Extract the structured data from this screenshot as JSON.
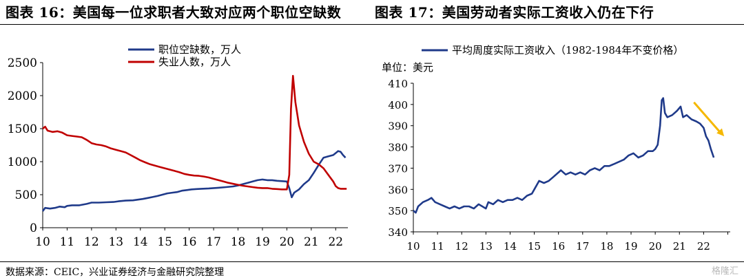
{
  "header": {
    "left_title": "图表 16：美国每一位求职者大致对应两个职位空缺数",
    "right_title": "图表 17：美国劳动者实际工资收入仍在下行"
  },
  "footer": {
    "source": "数据来源：CEIC，兴业证券经济与金融研究院整理",
    "watermark": "格隆汇"
  },
  "colors": {
    "navy": "#1f3a8a",
    "red": "#c00000",
    "arrow": "#f5b800"
  },
  "chart_data": [
    {
      "type": "line",
      "title": "",
      "xlabel": "",
      "ylabel": "",
      "ylim": [
        0,
        2500
      ],
      "xlim": [
        10,
        22.5
      ],
      "x_ticks": [
        "10",
        "11",
        "12",
        "13",
        "14",
        "15",
        "16",
        "17",
        "18",
        "19",
        "20",
        "21",
        "22"
      ],
      "y_ticks": [
        "0",
        "500",
        "1000",
        "1500",
        "2000",
        "2500"
      ],
      "grid": false,
      "legend_position": "top",
      "series": [
        {
          "name": "职位空缺数，万人",
          "color": "#1f3a8a",
          "points": [
            [
              10.0,
              250
            ],
            [
              10.1,
              300
            ],
            [
              10.3,
              290
            ],
            [
              10.5,
              300
            ],
            [
              10.7,
              320
            ],
            [
              10.9,
              310
            ],
            [
              11.0,
              330
            ],
            [
              11.2,
              340
            ],
            [
              11.5,
              340
            ],
            [
              11.8,
              360
            ],
            [
              12.0,
              380
            ],
            [
              12.3,
              380
            ],
            [
              12.6,
              385
            ],
            [
              12.9,
              390
            ],
            [
              13.1,
              400
            ],
            [
              13.4,
              410
            ],
            [
              13.7,
              415
            ],
            [
              13.9,
              425
            ],
            [
              14.1,
              435
            ],
            [
              14.3,
              450
            ],
            [
              14.5,
              465
            ],
            [
              14.7,
              480
            ],
            [
              14.9,
              500
            ],
            [
              15.1,
              520
            ],
            [
              15.3,
              530
            ],
            [
              15.5,
              540
            ],
            [
              15.7,
              560
            ],
            [
              15.9,
              570
            ],
            [
              16.1,
              580
            ],
            [
              16.3,
              585
            ],
            [
              16.5,
              590
            ],
            [
              16.8,
              595
            ],
            [
              17.0,
              600
            ],
            [
              17.2,
              605
            ],
            [
              17.5,
              615
            ],
            [
              17.8,
              625
            ],
            [
              18.0,
              640
            ],
            [
              18.2,
              660
            ],
            [
              18.4,
              680
            ],
            [
              18.6,
              700
            ],
            [
              18.8,
              720
            ],
            [
              19.0,
              730
            ],
            [
              19.2,
              720
            ],
            [
              19.4,
              720
            ],
            [
              19.6,
              710
            ],
            [
              19.8,
              705
            ],
            [
              20.0,
              700
            ],
            [
              20.1,
              600
            ],
            [
              20.2,
              460
            ],
            [
              20.3,
              530
            ],
            [
              20.5,
              580
            ],
            [
              20.7,
              660
            ],
            [
              20.9,
              720
            ],
            [
              21.1,
              830
            ],
            [
              21.3,
              950
            ],
            [
              21.5,
              1060
            ],
            [
              21.7,
              1080
            ],
            [
              21.9,
              1100
            ],
            [
              22.0,
              1130
            ],
            [
              22.1,
              1160
            ],
            [
              22.2,
              1150
            ],
            [
              22.3,
              1100
            ],
            [
              22.4,
              1060
            ]
          ]
        },
        {
          "name": "失业人数，万人",
          "color": "#c00000",
          "points": [
            [
              10.0,
              1500
            ],
            [
              10.1,
              1530
            ],
            [
              10.2,
              1470
            ],
            [
              10.4,
              1450
            ],
            [
              10.6,
              1460
            ],
            [
              10.8,
              1440
            ],
            [
              11.0,
              1400
            ],
            [
              11.2,
              1390
            ],
            [
              11.4,
              1380
            ],
            [
              11.6,
              1370
            ],
            [
              11.8,
              1330
            ],
            [
              12.0,
              1280
            ],
            [
              12.2,
              1260
            ],
            [
              12.4,
              1250
            ],
            [
              12.6,
              1230
            ],
            [
              12.8,
              1200
            ],
            [
              13.0,
              1180
            ],
            [
              13.2,
              1160
            ],
            [
              13.4,
              1140
            ],
            [
              13.6,
              1100
            ],
            [
              13.8,
              1060
            ],
            [
              14.0,
              1020
            ],
            [
              14.2,
              990
            ],
            [
              14.4,
              960
            ],
            [
              14.6,
              940
            ],
            [
              14.8,
              920
            ],
            [
              15.0,
              900
            ],
            [
              15.2,
              880
            ],
            [
              15.4,
              860
            ],
            [
              15.6,
              840
            ],
            [
              15.8,
              815
            ],
            [
              16.0,
              800
            ],
            [
              16.2,
              790
            ],
            [
              16.4,
              785
            ],
            [
              16.6,
              775
            ],
            [
              16.8,
              760
            ],
            [
              17.0,
              740
            ],
            [
              17.2,
              720
            ],
            [
              17.4,
              700
            ],
            [
              17.6,
              680
            ],
            [
              17.8,
              665
            ],
            [
              18.0,
              650
            ],
            [
              18.2,
              635
            ],
            [
              18.4,
              625
            ],
            [
              18.6,
              615
            ],
            [
              18.8,
              605
            ],
            [
              19.0,
              600
            ],
            [
              19.2,
              600
            ],
            [
              19.4,
              590
            ],
            [
              19.6,
              585
            ],
            [
              19.8,
              580
            ],
            [
              20.0,
              580
            ],
            [
              20.1,
              800
            ],
            [
              20.17,
              1800
            ],
            [
              20.25,
              2300
            ],
            [
              20.35,
              1900
            ],
            [
              20.5,
              1550
            ],
            [
              20.7,
              1300
            ],
            [
              20.9,
              1120
            ],
            [
              21.1,
              1000
            ],
            [
              21.3,
              960
            ],
            [
              21.5,
              900
            ],
            [
              21.7,
              800
            ],
            [
              21.9,
              700
            ],
            [
              22.0,
              630
            ],
            [
              22.1,
              600
            ],
            [
              22.2,
              590
            ],
            [
              22.3,
              590
            ],
            [
              22.45,
              590
            ]
          ]
        }
      ]
    },
    {
      "type": "line",
      "title": "",
      "xlabel": "",
      "ylabel": "单位：美元",
      "ylim": [
        340,
        410
      ],
      "xlim": [
        10,
        23.1
      ],
      "x_ticks": [
        "10",
        "11",
        "12",
        "13",
        "14",
        "15",
        "16",
        "17",
        "18",
        "19",
        "20",
        "21",
        "22"
      ],
      "y_ticks": [
        "340",
        "350",
        "360",
        "370",
        "380",
        "390",
        "400",
        "410"
      ],
      "grid": false,
      "legend_position": "top",
      "series": [
        {
          "name": "平均周度实际工资收入（1982-1984年不变价格）",
          "color": "#1f3a8a",
          "points": [
            [
              10.0,
              350
            ],
            [
              10.1,
              349
            ],
            [
              10.2,
              352
            ],
            [
              10.4,
              354
            ],
            [
              10.6,
              355
            ],
            [
              10.75,
              356
            ],
            [
              10.9,
              354
            ],
            [
              11.1,
              353
            ],
            [
              11.3,
              352
            ],
            [
              11.5,
              351
            ],
            [
              11.7,
              352
            ],
            [
              11.9,
              351
            ],
            [
              12.1,
              352
            ],
            [
              12.3,
              352
            ],
            [
              12.5,
              351
            ],
            [
              12.7,
              353
            ],
            [
              12.85,
              352
            ],
            [
              13.0,
              351
            ],
            [
              13.1,
              354
            ],
            [
              13.3,
              353
            ],
            [
              13.5,
              355
            ],
            [
              13.7,
              354
            ],
            [
              13.9,
              355
            ],
            [
              14.1,
              355
            ],
            [
              14.3,
              356
            ],
            [
              14.5,
              355
            ],
            [
              14.7,
              357
            ],
            [
              14.9,
              358
            ],
            [
              15.0,
              360
            ],
            [
              15.2,
              364
            ],
            [
              15.4,
              363
            ],
            [
              15.6,
              364
            ],
            [
              15.8,
              366
            ],
            [
              16.0,
              368
            ],
            [
              16.1,
              369
            ],
            [
              16.3,
              367
            ],
            [
              16.5,
              368
            ],
            [
              16.7,
              367
            ],
            [
              16.9,
              368
            ],
            [
              17.1,
              367
            ],
            [
              17.3,
              369
            ],
            [
              17.5,
              370
            ],
            [
              17.7,
              369
            ],
            [
              17.9,
              371
            ],
            [
              18.1,
              371
            ],
            [
              18.3,
              372
            ],
            [
              18.5,
              373
            ],
            [
              18.7,
              374
            ],
            [
              18.9,
              376
            ],
            [
              19.1,
              377
            ],
            [
              19.3,
              375
            ],
            [
              19.5,
              376
            ],
            [
              19.7,
              378
            ],
            [
              19.9,
              378
            ],
            [
              20.0,
              379
            ],
            [
              20.1,
              381
            ],
            [
              20.2,
              390
            ],
            [
              20.27,
              402
            ],
            [
              20.33,
              403
            ],
            [
              20.4,
              396
            ],
            [
              20.5,
              394
            ],
            [
              20.7,
              395
            ],
            [
              20.9,
              397
            ],
            [
              21.05,
              399
            ],
            [
              21.15,
              394
            ],
            [
              21.3,
              395
            ],
            [
              21.5,
              393
            ],
            [
              21.7,
              392
            ],
            [
              21.85,
              391
            ],
            [
              22.0,
              389
            ],
            [
              22.1,
              385
            ],
            [
              22.2,
              383
            ],
            [
              22.3,
              379
            ],
            [
              22.42,
              375
            ]
          ]
        }
      ],
      "annotation": {
        "type": "arrow",
        "direction": "down-right",
        "color": "#f5b800"
      }
    }
  ]
}
